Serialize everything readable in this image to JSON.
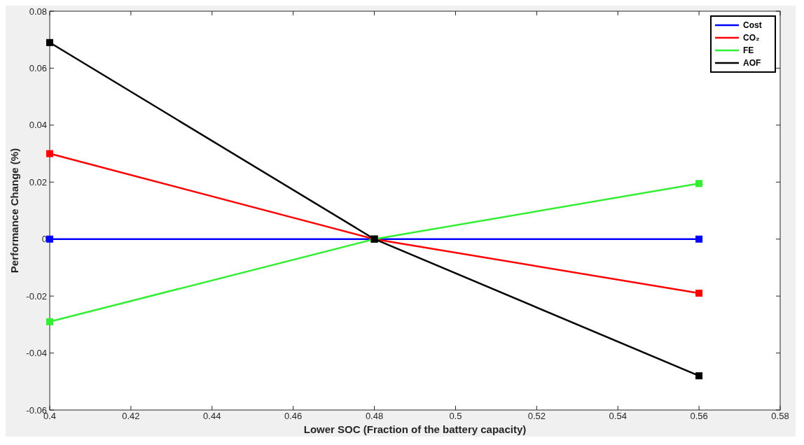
{
  "chart_data": {
    "type": "line",
    "xlabel": "Lower SOC (Fraction of the battery capacity)",
    "ylabel": "Performance Change (%)",
    "x": [
      0.4,
      0.48,
      0.56
    ],
    "series": [
      {
        "name": "Cost",
        "color": "#0000ff",
        "values": [
          0,
          0,
          0
        ]
      },
      {
        "name": "CO₂",
        "color": "#ff0000",
        "values": [
          0.03,
          0,
          -0.019
        ]
      },
      {
        "name": "FE",
        "color": "#33ee33",
        "values": [
          -0.029,
          0,
          0.0195
        ]
      },
      {
        "name": "AOF",
        "color": "#000000",
        "values": [
          0.069,
          0,
          -0.048
        ]
      }
    ],
    "xlim": [
      0.4,
      0.58
    ],
    "xticks": [
      0.4,
      0.42,
      0.44,
      0.46,
      0.48,
      {
        "value": 0.5,
        "label": "0.5"
      },
      0.52,
      0.54,
      0.56,
      0.58
    ],
    "ylim": [
      -0.06,
      0.08
    ],
    "yticks": [
      -0.06,
      -0.04,
      -0.02,
      0,
      0.02,
      0.04,
      0.06,
      0.08
    ],
    "legend": "top right",
    "marker": "square",
    "line_style": "solid",
    "grid": false
  }
}
